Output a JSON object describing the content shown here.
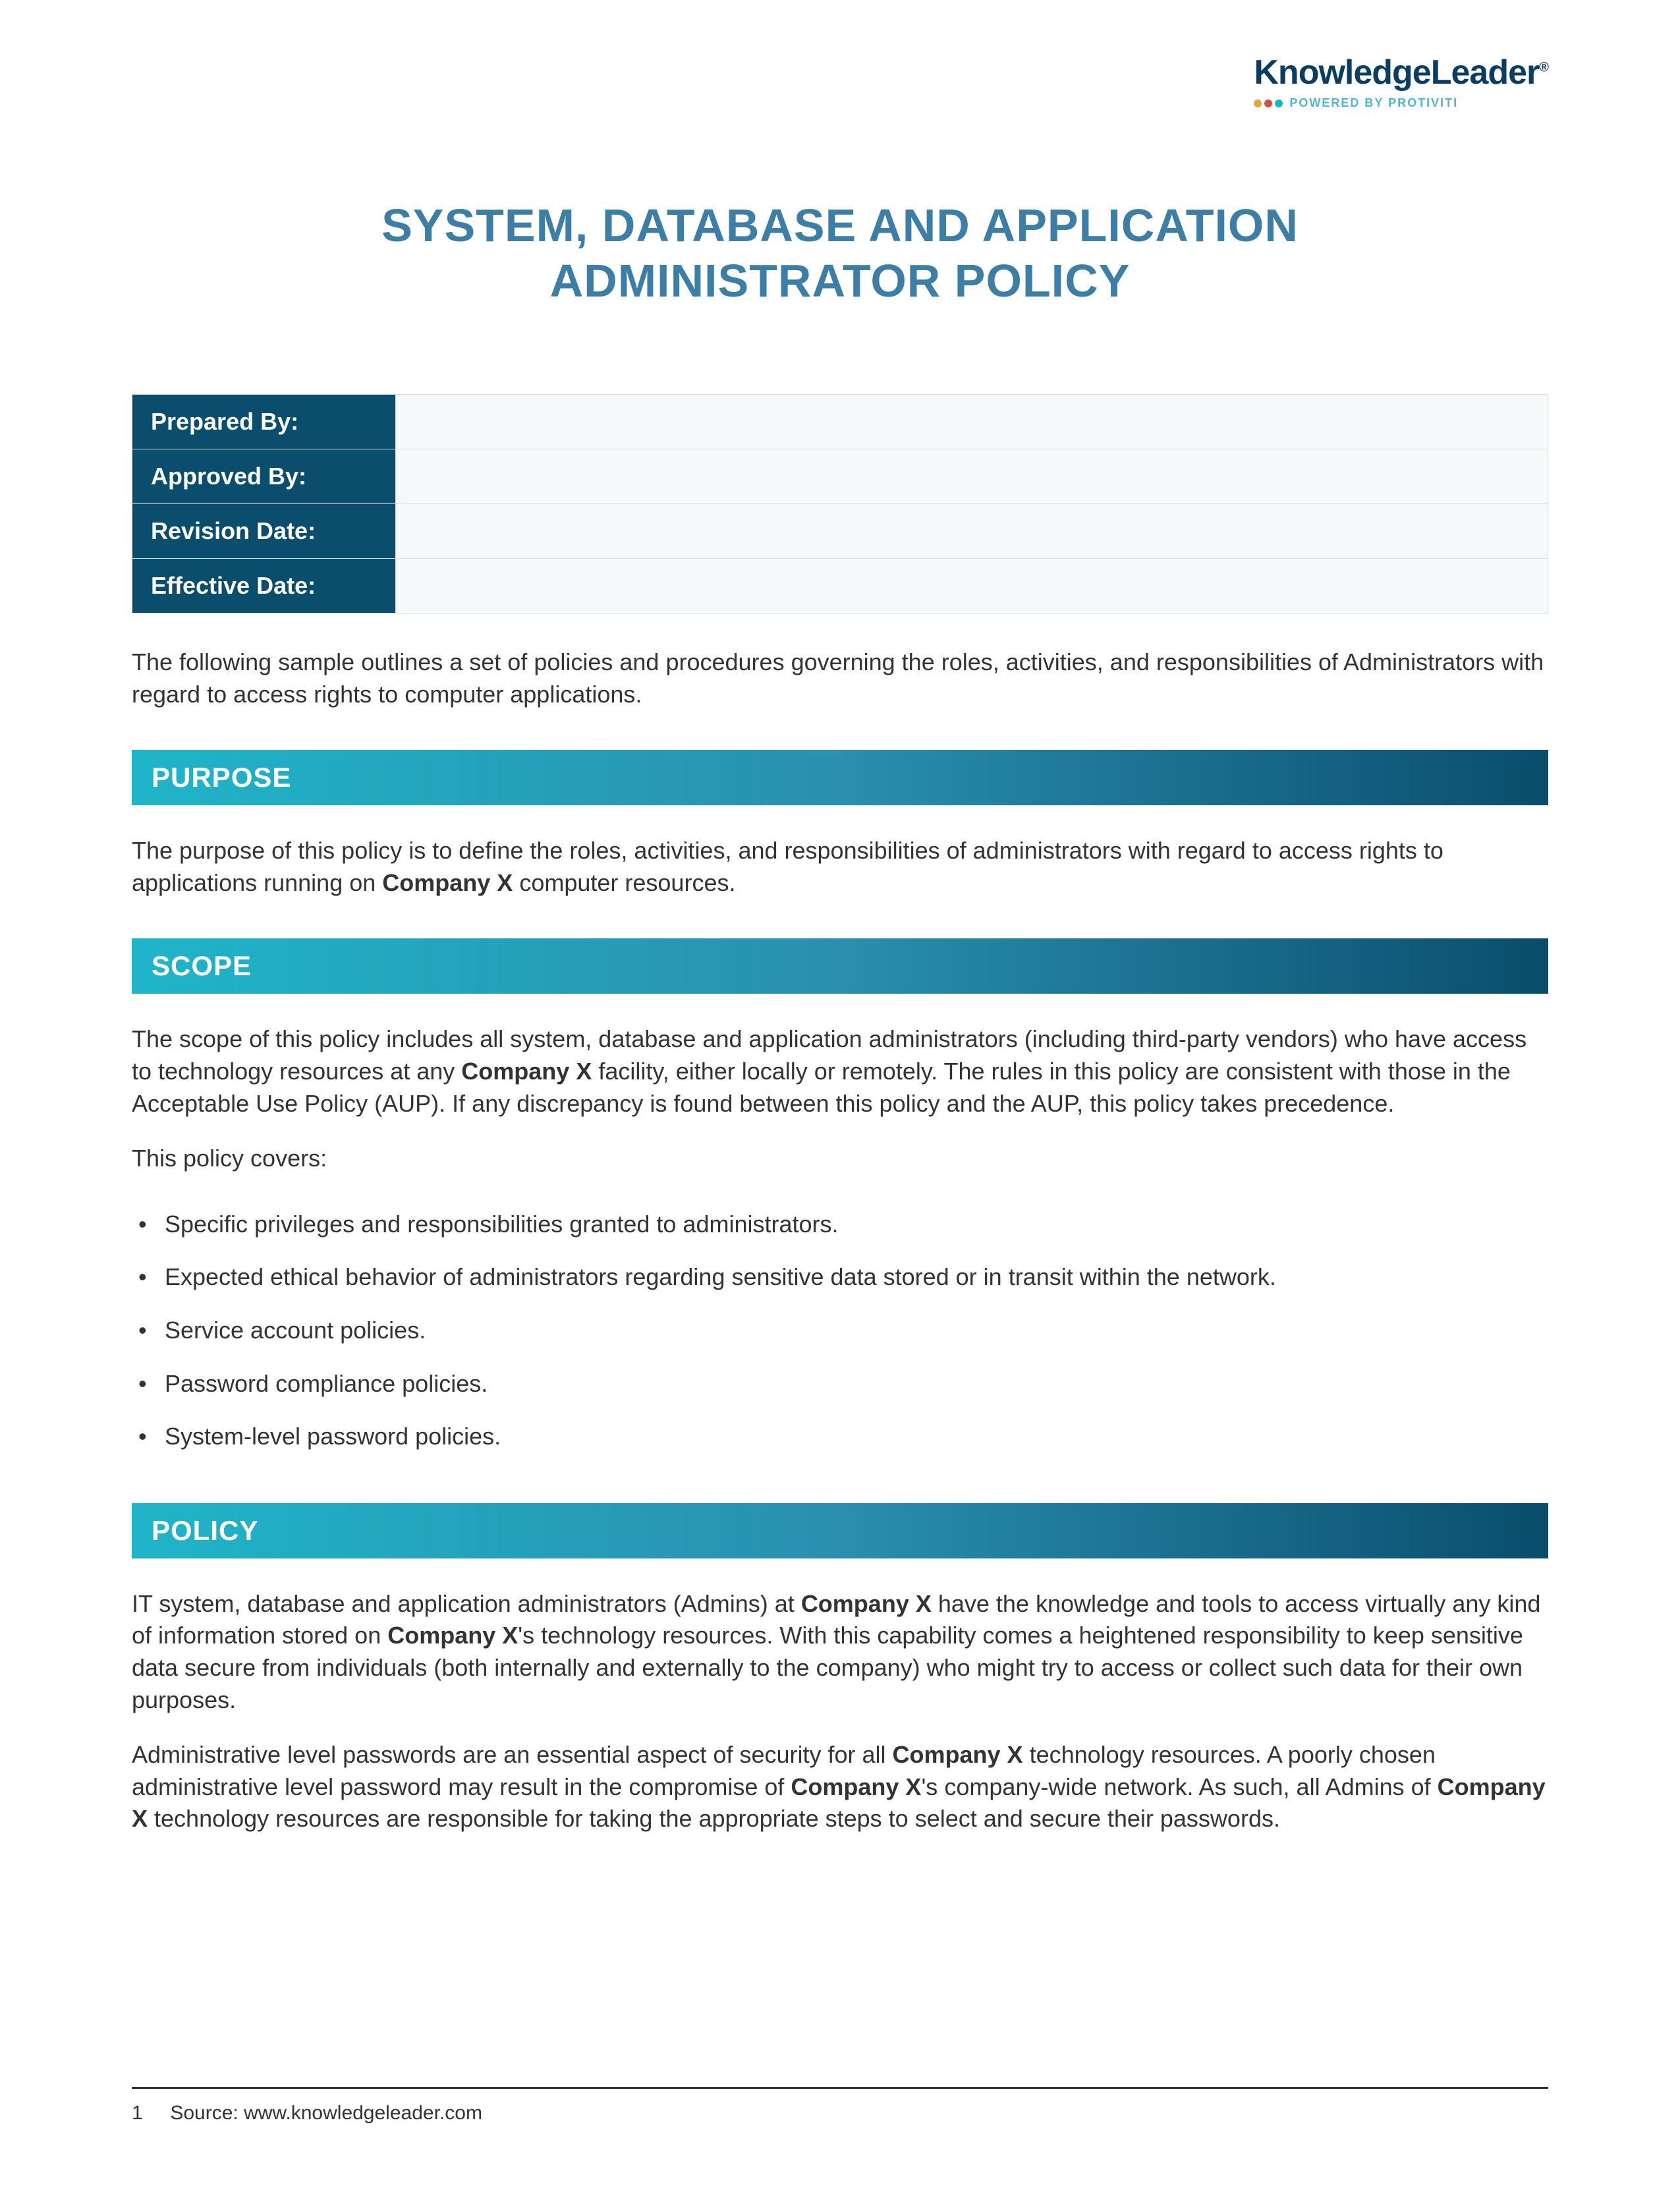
{
  "logo": {
    "brand": "KnowledgeLeader",
    "reg": "®",
    "tagline": "POWERED BY PROTIVITI",
    "dot_colors": [
      "#e8a33d",
      "#d94f3d",
      "#1fb5c9"
    ]
  },
  "title_line1": "SYSTEM, DATABASE AND APPLICATION",
  "title_line2": "ADMINISTRATOR POLICY",
  "meta": {
    "rows": [
      {
        "label": "Prepared By:",
        "value": ""
      },
      {
        "label": "Approved By:",
        "value": ""
      },
      {
        "label": "Revision Date:",
        "value": ""
      },
      {
        "label": "Effective Date:",
        "value": ""
      }
    ]
  },
  "intro": "The following sample outlines a set of policies and procedures governing the roles, activities, and responsibilities of Administrators with regard to access rights to computer applications.",
  "sections": {
    "purpose": {
      "heading": "PURPOSE",
      "p1a": "The purpose of this policy is to define the roles, activities, and responsibilities of administrators with regard to access rights to applications running on ",
      "p1b": "Company X",
      "p1c": " computer resources."
    },
    "scope": {
      "heading": "SCOPE",
      "p1a": "The scope of this policy includes all system, database and application administrators (including third-party vendors) who have access to technology resources at any ",
      "p1b": "Company X",
      "p1c": " facility, either locally or remotely.  The rules in this policy are consistent with those in the Acceptable Use Policy (AUP).  If any discrepancy is found between this policy and the AUP, this policy takes precedence.",
      "p2": "This policy covers:",
      "items": [
        "Specific privileges and responsibilities granted to administrators.",
        "Expected ethical behavior of administrators regarding sensitive data stored or in transit within the network.",
        "Service account policies.",
        "Password compliance policies.",
        "System-level password policies."
      ]
    },
    "policy": {
      "heading": "POLICY",
      "p1a": "IT system, database and application administrators (Admins) at ",
      "p1b": "Company X",
      "p1c": " have the knowledge and tools to access virtually any kind of information stored on ",
      "p1d": "Company X",
      "p1e": "'s technology resources.  With this capability comes a heightened responsibility to keep sensitive data secure from individuals (both internally and externally to the company) who might try to access or collect such data for their own purposes.",
      "p2a": "Administrative level passwords are an essential aspect of security for all ",
      "p2b": "Company X",
      "p2c": " technology resources.  A poorly chosen administrative level password may result in the compromise of ",
      "p2d": "Company X",
      "p2e": "'s company-wide network. As such, all Admins of ",
      "p2f": "Company X",
      "p2g": " technology resources are responsible for taking the appropriate steps to select and secure their passwords."
    }
  },
  "footer": {
    "page": "1",
    "source": "Source: www.knowledgeleader.com"
  },
  "colors": {
    "title": "#3d7ea6",
    "bar_gradient_start": "#1fb5c9",
    "bar_gradient_end": "#0a4d6c",
    "meta_label_bg": "#0a4d6c",
    "text": "#333333"
  }
}
